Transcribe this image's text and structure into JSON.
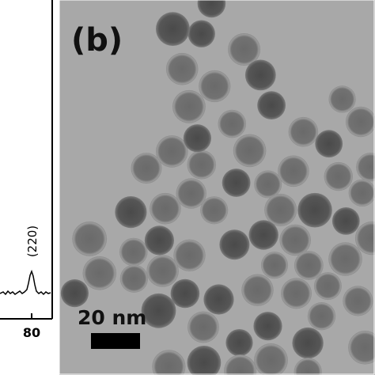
{
  "left_panel": {
    "peak_label": "(220)",
    "x_tick_label": "80"
  },
  "right_panel": {
    "panel_label": "(b)",
    "scale_bar_label": "20 nm"
  }
}
